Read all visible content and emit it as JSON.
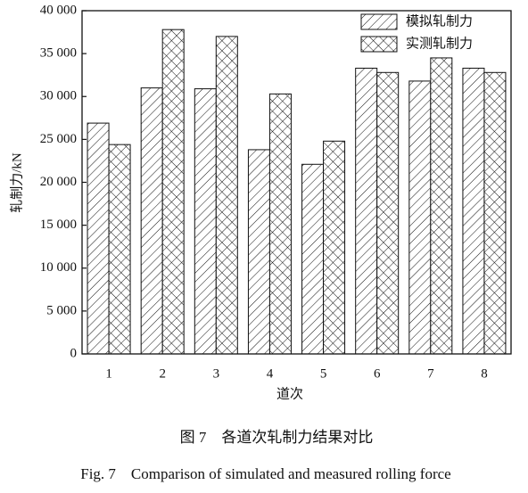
{
  "chart_data": {
    "type": "bar",
    "categories": [
      "1",
      "2",
      "3",
      "4",
      "5",
      "6",
      "7",
      "8"
    ],
    "series": [
      {
        "name": "模拟轧制力",
        "color": "#111111",
        "pattern": "diagonal",
        "values": [
          26900,
          31000,
          30900,
          23800,
          22100,
          33300,
          31800,
          33300
        ]
      },
      {
        "name": "实测轧制力",
        "color": "#111111",
        "pattern": "crosshatch",
        "values": [
          24400,
          37800,
          37000,
          30300,
          24800,
          32800,
          34500,
          32800
        ]
      }
    ],
    "ylim": [
      0,
      40000
    ],
    "yticks": [
      0,
      {
        "value": 5000,
        "label": "5 000"
      },
      {
        "value": 10000,
        "label": "10 000"
      },
      {
        "value": 15000,
        "label": "15 000"
      },
      {
        "value": 20000,
        "label": "20 000"
      },
      {
        "value": 25000,
        "label": "25 000"
      },
      {
        "value": 30000,
        "label": "30 000"
      },
      {
        "value": 35000,
        "label": "35 000"
      },
      {
        "value": 40000,
        "label": "40 000"
      }
    ],
    "xlabel": "道次",
    "ylabel": "轧制力/kN",
    "legend": "upper right",
    "grid": false,
    "caption_cn": "图 7　各道次轧制力结果对比",
    "caption_en": "Fig. 7　Comparison of simulated and measured rolling force"
  }
}
